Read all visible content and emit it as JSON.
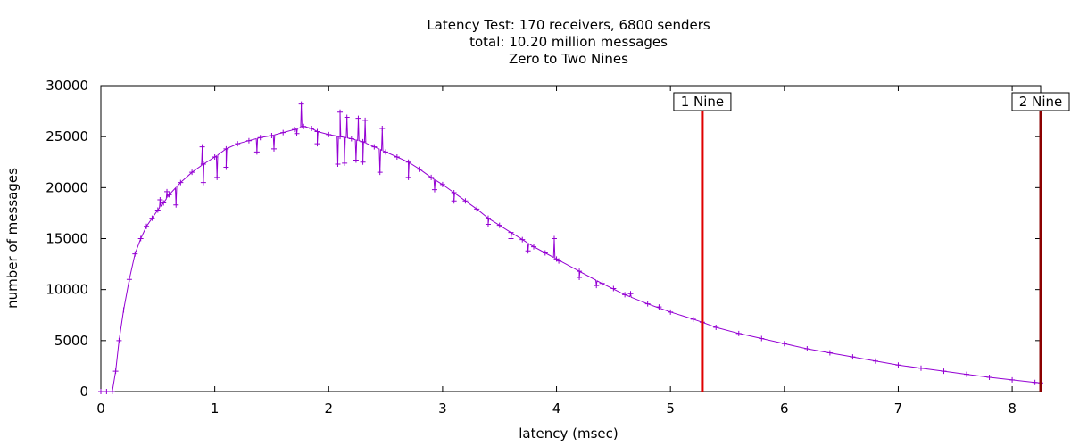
{
  "chart_data": {
    "type": "line",
    "title_lines": [
      "Latency Test: 170 receivers, 6800 senders",
      "total: 10.20 million messages",
      "Zero to Two Nines"
    ],
    "xlabel": "latency (msec)",
    "ylabel": "number of messages",
    "xlim": [
      0,
      8.25
    ],
    "ylim": [
      0,
      30000
    ],
    "x_ticks": [
      0,
      1,
      2,
      3,
      4,
      5,
      6,
      7,
      8
    ],
    "y_ticks": [
      0,
      5000,
      10000,
      15000,
      20000,
      25000,
      30000
    ],
    "grid": false,
    "series": [
      {
        "color": "#9400d3",
        "marker": "plus",
        "x": [
          0,
          0.05,
          0.1,
          0.13,
          0.16,
          0.2,
          0.25,
          0.3,
          0.35,
          0.4,
          0.45,
          0.5,
          0.55,
          0.6,
          0.7,
          0.8,
          0.9,
          1.0,
          1.1,
          1.2,
          1.3,
          1.4,
          1.5,
          1.6,
          1.7,
          1.78,
          1.85,
          1.9,
          2.0,
          2.1,
          2.2,
          2.3,
          2.4,
          2.5,
          2.6,
          2.7,
          2.8,
          2.9,
          3.0,
          3.1,
          3.2,
          3.3,
          3.4,
          3.5,
          3.6,
          3.7,
          3.8,
          3.9,
          4.0,
          4.2,
          4.4,
          4.6,
          4.8,
          5.0,
          5.2,
          5.28,
          5.4,
          5.6,
          5.8,
          6.0,
          6.2,
          6.4,
          6.6,
          6.8,
          7.0,
          7.2,
          7.4,
          7.6,
          7.8,
          8.0,
          8.2,
          8.25
        ],
        "y": [
          0,
          0,
          0,
          2000,
          5000,
          8000,
          11000,
          13500,
          15000,
          16200,
          17000,
          17800,
          18500,
          19300,
          20500,
          21500,
          22300,
          23000,
          23800,
          24300,
          24600,
          24900,
          25100,
          25400,
          25700,
          26000,
          25800,
          25500,
          25200,
          25000,
          24800,
          24500,
          24000,
          23500,
          23000,
          22500,
          21800,
          21000,
          20300,
          19500,
          18700,
          17900,
          17000,
          16300,
          15600,
          14900,
          14200,
          13600,
          13000,
          11800,
          10600,
          9500,
          8600,
          7800,
          7100,
          6800,
          6300,
          5700,
          5200,
          4700,
          4200,
          3800,
          3400,
          3000,
          2600,
          2300,
          2000,
          1700,
          1400,
          1150,
          900,
          850
        ],
        "spikes": [
          {
            "x": 0.52,
            "y": 18800
          },
          {
            "x": 0.58,
            "y": 19600
          },
          {
            "x": 0.66,
            "y": 18300
          },
          {
            "x": 0.89,
            "y": 24000
          },
          {
            "x": 0.9,
            "y": 20500
          },
          {
            "x": 1.02,
            "y": 21000
          },
          {
            "x": 1.1,
            "y": 22000
          },
          {
            "x": 1.37,
            "y": 23500
          },
          {
            "x": 1.52,
            "y": 23800
          },
          {
            "x": 1.72,
            "y": 25300
          },
          {
            "x": 1.76,
            "y": 28200
          },
          {
            "x": 1.9,
            "y": 24300
          },
          {
            "x": 2.08,
            "y": 22300
          },
          {
            "x": 2.1,
            "y": 27400
          },
          {
            "x": 2.14,
            "y": 22400
          },
          {
            "x": 2.16,
            "y": 26900
          },
          {
            "x": 2.24,
            "y": 22700
          },
          {
            "x": 2.26,
            "y": 26800
          },
          {
            "x": 2.3,
            "y": 22500
          },
          {
            "x": 2.32,
            "y": 26600
          },
          {
            "x": 2.45,
            "y": 21500
          },
          {
            "x": 2.47,
            "y": 25800
          },
          {
            "x": 2.7,
            "y": 21000
          },
          {
            "x": 2.93,
            "y": 19800
          },
          {
            "x": 3.1,
            "y": 18700
          },
          {
            "x": 3.4,
            "y": 16400
          },
          {
            "x": 3.6,
            "y": 15000
          },
          {
            "x": 3.75,
            "y": 13800
          },
          {
            "x": 3.98,
            "y": 15000
          },
          {
            "x": 4.02,
            "y": 12800
          },
          {
            "x": 4.2,
            "y": 11200
          },
          {
            "x": 4.35,
            "y": 10400
          },
          {
            "x": 4.5,
            "y": 10100
          },
          {
            "x": 4.65,
            "y": 9600
          },
          {
            "x": 4.9,
            "y": 8300
          }
        ]
      }
    ],
    "markers": [
      {
        "label": "1 Nine",
        "x": 5.28,
        "color": "#e00000"
      },
      {
        "label": "2 Nine",
        "x": 8.25,
        "color": "#8b0000"
      }
    ]
  }
}
